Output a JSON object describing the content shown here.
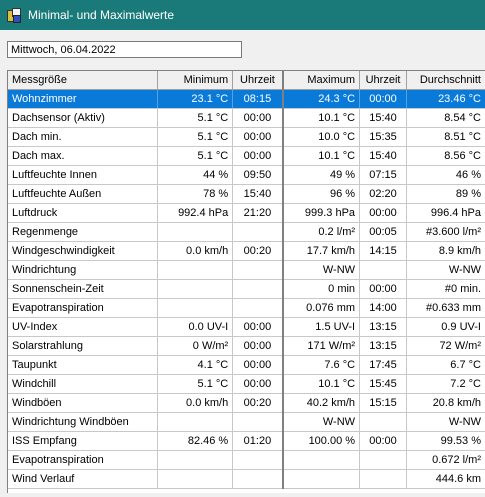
{
  "window": {
    "title": "Minimal- und Maximalwerte",
    "icon": "weather-app-icon"
  },
  "date_field": {
    "value": "Mittwoch, 06.04.2022"
  },
  "table": {
    "headers": {
      "name": "Messgröße",
      "min": "Minimum",
      "min_time": "Uhrzeit",
      "max": "Maximum",
      "max_time": "Uhrzeit",
      "avg": "Durchschnitt"
    },
    "selected_row": 0,
    "rows": [
      {
        "name": "Wohnzimmer",
        "min": "23.1 °C",
        "min_time": "08:15",
        "max": "24.3 °C",
        "max_time": "00:00",
        "avg": "23.46 °C"
      },
      {
        "name": "Dachsensor (Aktiv)",
        "min": "5.1 °C",
        "min_time": "00:00",
        "max": "10.1 °C",
        "max_time": "15:40",
        "avg": "8.54 °C"
      },
      {
        "name": "Dach min.",
        "min": "5.1 °C",
        "min_time": "00:00",
        "max": "10.0 °C",
        "max_time": "15:35",
        "avg": "8.51 °C"
      },
      {
        "name": "Dach max.",
        "min": "5.1 °C",
        "min_time": "00:00",
        "max": "10.1 °C",
        "max_time": "15:40",
        "avg": "8.56 °C"
      },
      {
        "name": "Luftfeuchte Innen",
        "min": "44 %",
        "min_time": "09:50",
        "max": "49 %",
        "max_time": "07:15",
        "avg": "46 %"
      },
      {
        "name": "Luftfeuchte Außen",
        "min": "78 %",
        "min_time": "15:40",
        "max": "96 %",
        "max_time": "02:20",
        "avg": "89 %"
      },
      {
        "name": "Luftdruck",
        "min": "992.4 hPa",
        "min_time": "21:20",
        "max": "999.3 hPa",
        "max_time": "00:00",
        "avg": "996.4 hPa"
      },
      {
        "name": "Regenmenge",
        "min": "",
        "min_time": "",
        "max": "0.2 l/m²",
        "max_time": "00:05",
        "avg": "#3.600 l/m²"
      },
      {
        "name": "Windgeschwindigkeit",
        "min": "0.0 km/h",
        "min_time": "00:20",
        "max": "17.7 km/h",
        "max_time": "14:15",
        "avg": "8.9 km/h"
      },
      {
        "name": "Windrichtung",
        "min": "",
        "min_time": "",
        "max": "W-NW",
        "max_time": "",
        "avg": "W-NW"
      },
      {
        "name": "Sonnenschein-Zeit",
        "min": "",
        "min_time": "",
        "max": "0 min",
        "max_time": "00:00",
        "avg": "#0 min."
      },
      {
        "name": "Evapotranspiration",
        "min": "",
        "min_time": "",
        "max": "0.076 mm",
        "max_time": "14:00",
        "avg": "#0.633 mm"
      },
      {
        "name": "UV-Index",
        "min": "0.0 UV-I",
        "min_time": "00:00",
        "max": "1.5 UV-I",
        "max_time": "13:15",
        "avg": "0.9 UV-I"
      },
      {
        "name": "Solarstrahlung",
        "min": "0 W/m²",
        "min_time": "00:00",
        "max": "171 W/m²",
        "max_time": "13:15",
        "avg": "72 W/m²"
      },
      {
        "name": "Taupunkt",
        "min": "4.1 °C",
        "min_time": "00:00",
        "max": "7.6 °C",
        "max_time": "17:45",
        "avg": "6.7 °C"
      },
      {
        "name": "Windchill",
        "min": "5.1 °C",
        "min_time": "00:00",
        "max": "10.1 °C",
        "max_time": "15:45",
        "avg": "7.2 °C"
      },
      {
        "name": "Windböen",
        "min": "0.0 km/h",
        "min_time": "00:20",
        "max": "40.2 km/h",
        "max_time": "15:15",
        "avg": "20.8 km/h"
      },
      {
        "name": "Windrichtung Windböen",
        "min": "",
        "min_time": "",
        "max": "W-NW",
        "max_time": "",
        "avg": "W-NW"
      },
      {
        "name": "ISS Empfang",
        "min": "82.46 %",
        "min_time": "01:20",
        "max": "100.00 %",
        "max_time": "00:00",
        "avg": "99.53 %"
      },
      {
        "name": "Evapotranspiration",
        "min": "",
        "min_time": "",
        "max": "",
        "max_time": "",
        "avg": "0.672 l/m²"
      },
      {
        "name": "Wind Verlauf",
        "min": "",
        "min_time": "",
        "max": "",
        "max_time": "",
        "avg": "444.6 km"
      }
    ]
  }
}
